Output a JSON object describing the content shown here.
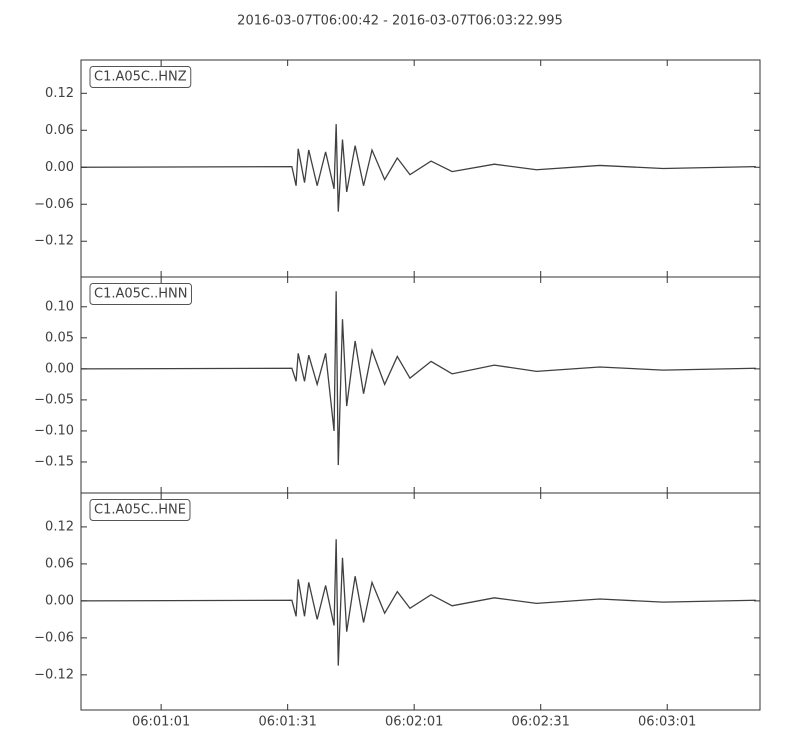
{
  "title": "2016-03-07T06:00:42  -  2016-03-07T06:03:22.995",
  "chart_data": [
    {
      "type": "line",
      "x": [
        "06:00:42",
        "06:01:32",
        "06:01:33",
        "06:01:33.5",
        "06:01:35",
        "06:01:36",
        "06:01:38",
        "06:01:40",
        "06:01:42",
        "06:01:42.5",
        "06:01:43",
        "06:01:44",
        "06:01:45",
        "06:01:47",
        "06:01:49",
        "06:01:51",
        "06:01:54",
        "06:01:57",
        "06:02:00",
        "06:02:05",
        "06:02:10",
        "06:02:20",
        "06:02:30",
        "06:02:45",
        "06:03:00",
        "06:03:22"
      ],
      "series": [
        {
          "name": "C1.A05C..HNZ",
          "color": "#404040",
          "values": [
            0,
            0.001,
            -0.03,
            0.03,
            -0.025,
            0.028,
            -0.03,
            0.025,
            -0.035,
            0.07,
            -0.072,
            0.045,
            -0.04,
            0.035,
            -0.03,
            0.028,
            -0.02,
            0.015,
            -0.012,
            0.01,
            -0.007,
            0.005,
            -0.004,
            0.003,
            -0.002,
            0.001
          ]
        }
      ],
      "xlim": [
        "06:00:42",
        "06:03:22.995"
      ],
      "xticks": [
        "06:01:01",
        "06:01:31",
        "06:02:01",
        "06:02:31",
        "06:03:01"
      ],
      "ylim": [
        -0.178,
        0.174
      ],
      "yticks": [
        {
          "value": -0.12,
          "label": "−0.12"
        },
        {
          "value": -0.06,
          "label": "−0.06"
        },
        {
          "value": 0,
          "label": "0.00"
        },
        {
          "value": 0.06,
          "label": "0.06"
        },
        {
          "value": 0.12,
          "label": "0.12"
        }
      ]
    },
    {
      "type": "line",
      "x": [
        "06:00:42",
        "06:01:32",
        "06:01:33",
        "06:01:33.5",
        "06:01:35",
        "06:01:36",
        "06:01:38",
        "06:01:40",
        "06:01:42",
        "06:01:42.5",
        "06:01:43",
        "06:01:44",
        "06:01:45",
        "06:01:47",
        "06:01:49",
        "06:01:51",
        "06:01:54",
        "06:01:57",
        "06:02:00",
        "06:02:05",
        "06:02:10",
        "06:02:20",
        "06:02:30",
        "06:02:45",
        "06:03:00",
        "06:03:22"
      ],
      "series": [
        {
          "name": "C1.A05C..HNN",
          "color": "#404040",
          "values": [
            0,
            0.001,
            -0.02,
            0.025,
            -0.02,
            0.022,
            -0.025,
            0.025,
            -0.1,
            0.125,
            -0.155,
            0.08,
            -0.06,
            0.045,
            -0.04,
            0.03,
            -0.025,
            0.02,
            -0.015,
            0.012,
            -0.008,
            0.006,
            -0.004,
            0.003,
            -0.002,
            0.001
          ]
        }
      ],
      "xlim": [
        "06:00:42",
        "06:03:22.995"
      ],
      "xticks": [
        "06:01:01",
        "06:01:31",
        "06:02:01",
        "06:02:31",
        "06:03:01"
      ],
      "ylim": [
        -0.2,
        0.148
      ],
      "yticks": [
        {
          "value": -0.15,
          "label": "−0.15"
        },
        {
          "value": -0.1,
          "label": "−0.10"
        },
        {
          "value": -0.05,
          "label": "−0.05"
        },
        {
          "value": 0,
          "label": "0.00"
        },
        {
          "value": 0.05,
          "label": "0.05"
        },
        {
          "value": 0.1,
          "label": "0.10"
        }
      ]
    },
    {
      "type": "line",
      "x": [
        "06:00:42",
        "06:01:32",
        "06:01:33",
        "06:01:33.5",
        "06:01:35",
        "06:01:36",
        "06:01:38",
        "06:01:40",
        "06:01:42",
        "06:01:42.5",
        "06:01:43",
        "06:01:44",
        "06:01:45",
        "06:01:47",
        "06:01:49",
        "06:01:51",
        "06:01:54",
        "06:01:57",
        "06:02:00",
        "06:02:05",
        "06:02:10",
        "06:02:20",
        "06:02:30",
        "06:02:45",
        "06:03:00",
        "06:03:22"
      ],
      "series": [
        {
          "name": "C1.A05C..HNE",
          "color": "#404040",
          "values": [
            0,
            0.001,
            -0.025,
            0.035,
            -0.025,
            0.03,
            -0.03,
            0.025,
            -0.04,
            0.1,
            -0.105,
            0.07,
            -0.05,
            0.04,
            -0.035,
            0.03,
            -0.02,
            0.015,
            -0.012,
            0.01,
            -0.008,
            0.005,
            -0.004,
            0.003,
            -0.002,
            0.001
          ]
        }
      ],
      "xlim": [
        "06:00:42",
        "06:03:22.995"
      ],
      "xticks": [
        "06:01:01",
        "06:01:31",
        "06:02:01",
        "06:02:31",
        "06:03:01"
      ],
      "ylim": [
        -0.177,
        0.175
      ],
      "yticks": [
        {
          "value": -0.12,
          "label": "−0.12"
        },
        {
          "value": -0.06,
          "label": "−0.06"
        },
        {
          "value": 0,
          "label": "0.00"
        },
        {
          "value": 0.06,
          "label": "0.06"
        },
        {
          "value": 0.12,
          "label": "0.12"
        }
      ]
    }
  ]
}
